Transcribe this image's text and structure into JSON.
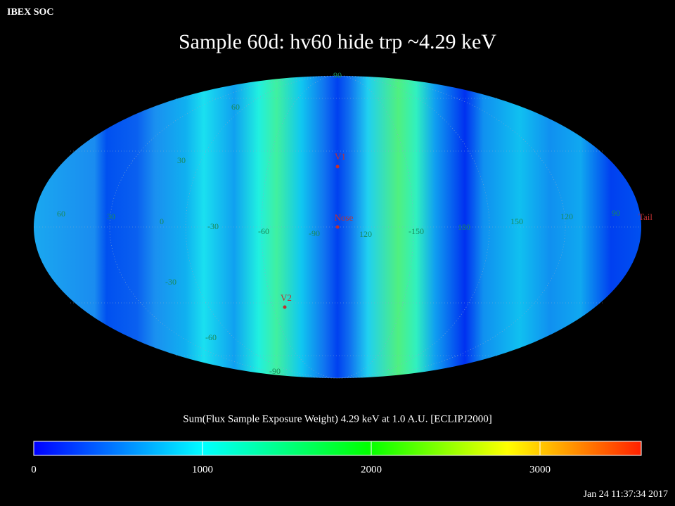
{
  "header": {
    "label": "IBEX SOC",
    "title": "Sample 60d: hv60 hide trp ~4.29 keV",
    "timestamp": "Jan 24 11:37:34 2017"
  },
  "map": {
    "grid_labels": [
      "90",
      "60",
      "30",
      "60",
      "30",
      "0",
      "-30",
      "-60",
      "-90",
      "120",
      "-150",
      "180",
      "150",
      "120",
      "90",
      "-30",
      "-60",
      "-90"
    ],
    "markers": [
      "V1",
      "Nose",
      "V2",
      "Tail"
    ]
  },
  "colorbar": {
    "title": "Sum(Flux Sample Exposure Weight)  4.29 keV at 1.0 A.U. [ECLIPJ2000]",
    "lim": [
      0,
      3600
    ],
    "ticks": [
      0,
      1000,
      2000,
      3000
    ]
  }
}
